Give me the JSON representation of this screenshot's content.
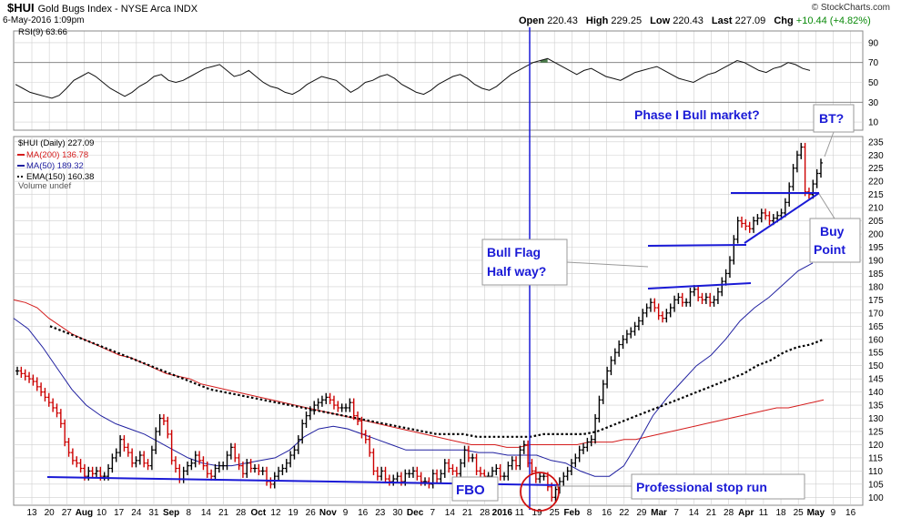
{
  "header": {
    "symbol": "$HUI",
    "description": "Gold Bugs Index - NYSE Arca INDX",
    "date": "6-May-2016 1:09pm",
    "brand": "© StockCharts.com",
    "open_label": "Open",
    "open": "220.43",
    "high_label": "High",
    "high": "229.25",
    "low_label": "Low",
    "low": "220.43",
    "last_label": "Last",
    "last": "227.09",
    "chg_label": "Chg",
    "chg": "+10.44 (+4.82%)"
  },
  "rsi_panel": {
    "label": "RSI(9) 63.66",
    "ticks": [
      "90",
      "70",
      "50",
      "30",
      "10"
    ]
  },
  "legend": {
    "price": "$HUI (Daily) 227.09",
    "ma200": "MA(200) 136.78",
    "ma50": "MA(50) 189.32",
    "ema150": "EMA(150) 160.38",
    "volume": "Volume undef"
  },
  "annotations": {
    "phase": "Phase I Bull market?",
    "bt": "BT?",
    "buy1": "Buy",
    "buy2": "Point",
    "flag1": "Bull Flag",
    "flag2": "Half way?",
    "fbo": "FBO",
    "stop_run": "Professional stop run"
  },
  "colors": {
    "up": "#000000",
    "down": "#cc0000",
    "ma200": "#d41c1c",
    "ma50": "#2020a0",
    "ema150": "#000000",
    "annotation": "#1a1ad6",
    "rsi_over": "#4a7a4a",
    "rsi_under": "#7a4a4a"
  },
  "chart_data": {
    "type": "line",
    "y_ticks": [
      "235",
      "230",
      "225",
      "220",
      "215",
      "210",
      "205",
      "200",
      "195",
      "190",
      "185",
      "180",
      "175",
      "170",
      "165",
      "160",
      "155",
      "150",
      "145",
      "140",
      "135",
      "130",
      "125",
      "120",
      "115",
      "110",
      "105",
      "100"
    ],
    "ylim": [
      97,
      237
    ],
    "x_ticks": [
      "13",
      "20",
      "27",
      "Aug",
      "10",
      "17",
      "24",
      "31",
      "Sep",
      "8",
      "14",
      "21",
      "28",
      "Oct",
      "12",
      "19",
      "26",
      "Nov",
      "9",
      "16",
      "23",
      "30",
      "Dec",
      "7",
      "14",
      "21",
      "28",
      "2016",
      "11",
      "19",
      "25",
      "Feb",
      "8",
      "16",
      "22",
      "29",
      "Mar",
      "7",
      "14",
      "21",
      "28",
      "Apr",
      "11",
      "18",
      "25",
      "May",
      "9",
      "16"
    ],
    "x_tick_months": [
      "Aug",
      "Sep",
      "Oct",
      "Nov",
      "Dec",
      "2016",
      "Feb",
      "Mar",
      "Apr",
      "May"
    ],
    "close": [
      148,
      147,
      146,
      145,
      144,
      142,
      140,
      138,
      136,
      134,
      132,
      128,
      121,
      117,
      114,
      113,
      111,
      108,
      110,
      109,
      110,
      108,
      108,
      111,
      115,
      117,
      122,
      119,
      117,
      113,
      114,
      116,
      113,
      112,
      118,
      125,
      130,
      129,
      124,
      114,
      111,
      107,
      110,
      112,
      113,
      116,
      114,
      112,
      109,
      108,
      111,
      112,
      112,
      116,
      119,
      115,
      112,
      109,
      113,
      111,
      111,
      110,
      110,
      106,
      105,
      108,
      110,
      111,
      113,
      116,
      118,
      122,
      128,
      131,
      133,
      135,
      136,
      137,
      138,
      137,
      135,
      134,
      134,
      134,
      136,
      131,
      129,
      124,
      122,
      117,
      110,
      108,
      110,
      107,
      106,
      107,
      108,
      106,
      109,
      109,
      110,
      108,
      106,
      106,
      105,
      109,
      107,
      109,
      113,
      111,
      110,
      109,
      113,
      118,
      115,
      115,
      110,
      109,
      108,
      108,
      110,
      111,
      108,
      108,
      112,
      114,
      112,
      118,
      120,
      113,
      110,
      107,
      108,
      108,
      104,
      100,
      103,
      106,
      108,
      110,
      113,
      115,
      118,
      119,
      121,
      122,
      130,
      137,
      143,
      148,
      152,
      155,
      158,
      160,
      162,
      163,
      165,
      167,
      170,
      172,
      174,
      172,
      169,
      168,
      170,
      172,
      175,
      176,
      174,
      174,
      178,
      179,
      176,
      175,
      176,
      174,
      175,
      178,
      182,
      185,
      190,
      198,
      205,
      204,
      203,
      202,
      205,
      206,
      208,
      207,
      205,
      206,
      207,
      208,
      212,
      218,
      225,
      230,
      233,
      216,
      215,
      219,
      223,
      227
    ],
    "series": [
      {
        "name": "MA(200) 136.78",
        "values": [
          175,
          174,
          172,
          168,
          165,
          162,
          160,
          158,
          156,
          154,
          153,
          151,
          149,
          147,
          146,
          145,
          143,
          142,
          141,
          140,
          139,
          138,
          137,
          136,
          135,
          134,
          133,
          132,
          131,
          130,
          129,
          128,
          127,
          126,
          125,
          124,
          123,
          122,
          121,
          120,
          120,
          120,
          119,
          119,
          120,
          120,
          120,
          120,
          120,
          121,
          121,
          121,
          122,
          122,
          123,
          124,
          125,
          126,
          127,
          128,
          129,
          130,
          131,
          132,
          133,
          134,
          134,
          135,
          136,
          137
        ]
      },
      {
        "name": "MA(50) 189.32",
        "values": [
          168,
          164,
          157,
          149,
          141,
          135,
          131,
          128,
          126,
          124,
          121,
          118,
          115,
          113,
          112,
          112,
          113,
          114,
          115,
          118,
          123,
          126,
          127,
          126,
          124,
          122,
          120,
          118,
          118,
          118,
          118,
          118,
          117,
          117,
          116,
          116,
          116,
          114,
          113,
          110,
          108,
          108,
          112,
          121,
          131,
          138,
          144,
          150,
          154,
          160,
          167,
          172,
          176,
          181,
          186,
          189
        ]
      },
      {
        "name": "EMA(150) 160.38",
        "values": [
          165,
          163,
          161,
          159,
          157,
          155,
          153,
          151,
          149,
          147,
          145,
          143,
          141,
          140,
          139,
          138,
          137,
          136,
          135,
          134,
          133,
          132,
          131,
          130,
          129,
          128,
          127,
          126,
          125,
          124,
          124,
          124,
          123,
          123,
          123,
          123,
          123,
          124,
          124,
          124,
          124,
          125,
          127,
          129,
          131,
          133,
          135,
          137,
          139,
          141,
          143,
          145,
          147,
          150,
          152,
          155,
          157,
          158,
          160
        ]
      }
    ],
    "rsi": [
      48,
      44,
      40,
      38,
      36,
      34,
      37,
      44,
      52,
      56,
      60,
      56,
      50,
      44,
      40,
      36,
      40,
      46,
      50,
      56,
      58,
      52,
      50,
      52,
      56,
      60,
      64,
      66,
      68,
      62,
      56,
      58,
      62,
      56,
      50,
      46,
      44,
      40,
      38,
      42,
      48,
      52,
      56,
      54,
      52,
      46,
      40,
      44,
      50,
      52,
      56,
      58,
      54,
      48,
      44,
      40,
      38,
      42,
      48,
      52,
      56,
      58,
      54,
      48,
      44,
      42,
      46,
      52,
      58,
      62,
      66,
      70,
      72,
      74,
      70,
      66,
      62,
      58,
      62,
      64,
      60,
      56,
      54,
      52,
      56,
      60,
      62,
      64,
      66,
      62,
      58,
      54,
      52,
      50,
      54,
      58,
      60,
      64,
      68,
      72,
      70,
      66,
      62,
      60,
      64,
      66,
      70,
      68,
      64,
      62
    ]
  }
}
